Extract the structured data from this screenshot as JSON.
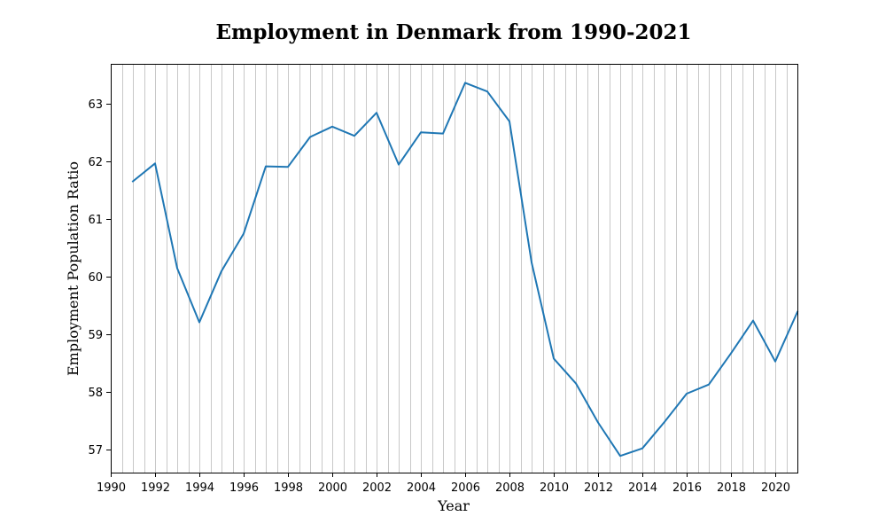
{
  "chart_data": {
    "type": "line",
    "title": "Employment in Denmark from 1990-2021",
    "xlabel": "Year",
    "ylabel": "Employment Population Ratio",
    "xlim": [
      1990,
      2021
    ],
    "ylim": [
      56.6,
      63.7
    ],
    "x_ticks": [
      1990,
      1992,
      1994,
      1996,
      1998,
      2000,
      2002,
      2004,
      2006,
      2008,
      2010,
      2012,
      2014,
      2016,
      2018,
      2020
    ],
    "y_ticks": [
      57,
      58,
      59,
      60,
      61,
      62,
      63
    ],
    "grid": "vertical minor gridlines every 0.5 years",
    "series": [
      {
        "color": "#1f77b4",
        "x": [
          1991,
          1992,
          1993,
          1994,
          1995,
          1996,
          1997,
          1998,
          1999,
          2000,
          2001,
          2002,
          2003,
          2004,
          2005,
          2006,
          2007,
          2008,
          2009,
          2010,
          2011,
          2012,
          2013,
          2014,
          2015,
          2016,
          2017,
          2018,
          2019,
          2020,
          2021
        ],
        "y": [
          61.66,
          61.97,
          60.15,
          59.21,
          60.1,
          60.75,
          61.92,
          61.91,
          62.43,
          62.61,
          62.45,
          62.85,
          61.95,
          62.51,
          62.49,
          63.37,
          63.22,
          62.7,
          60.25,
          58.58,
          58.15,
          57.47,
          56.89,
          57.02,
          57.48,
          57.97,
          58.13,
          58.67,
          59.24,
          58.53,
          59.39
        ]
      }
    ]
  }
}
